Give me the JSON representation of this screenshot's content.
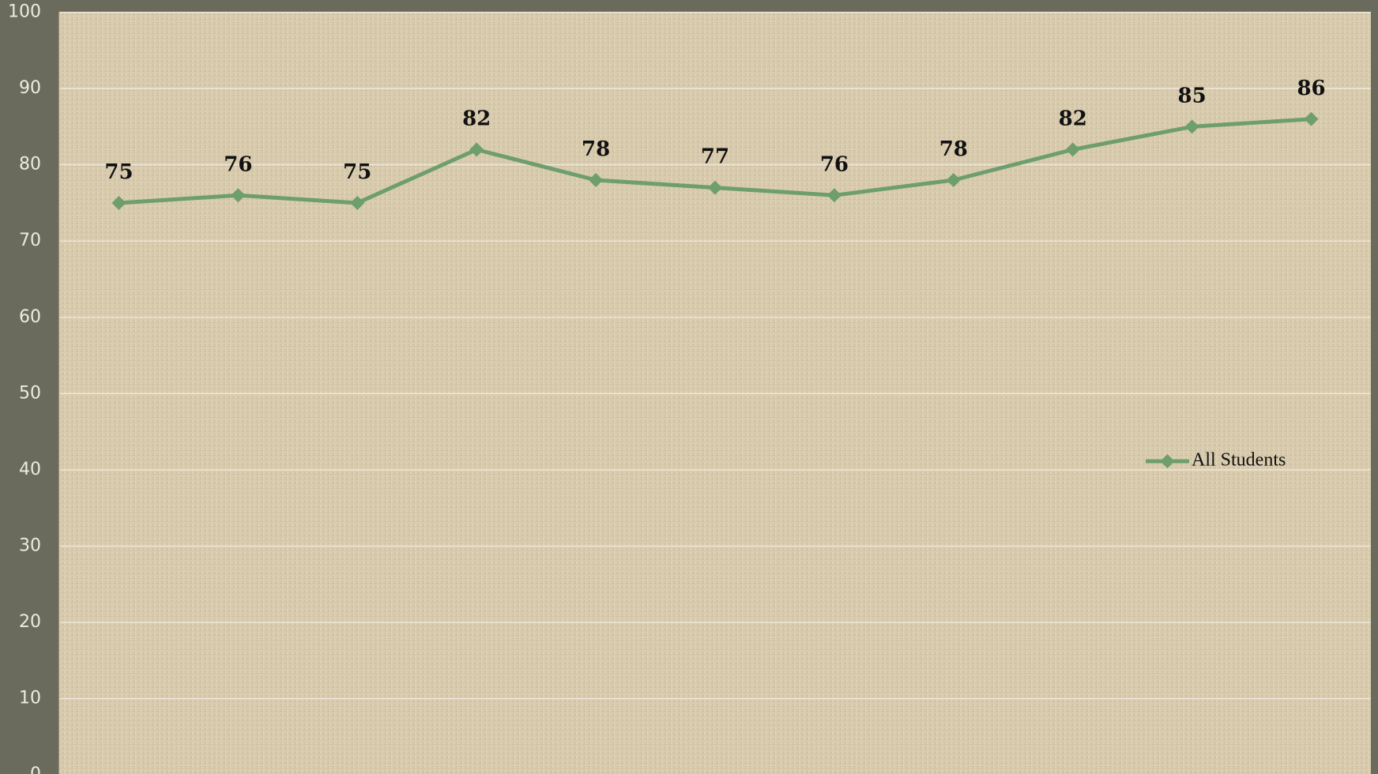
{
  "chart_data": {
    "type": "line",
    "categories": [
      null,
      null,
      null,
      null,
      null,
      null,
      null,
      null,
      null,
      null,
      null
    ],
    "series": [
      {
        "name": "All Students",
        "color": "#6e9e6e",
        "values": [
          75,
          76,
          75,
          82,
          78,
          77,
          76,
          78,
          82,
          85,
          86
        ]
      }
    ],
    "ylim": [
      0,
      100
    ],
    "yticks": [
      0,
      10,
      20,
      30,
      40,
      50,
      60,
      70,
      80,
      90,
      100
    ],
    "grid": true,
    "legend": "right"
  }
}
